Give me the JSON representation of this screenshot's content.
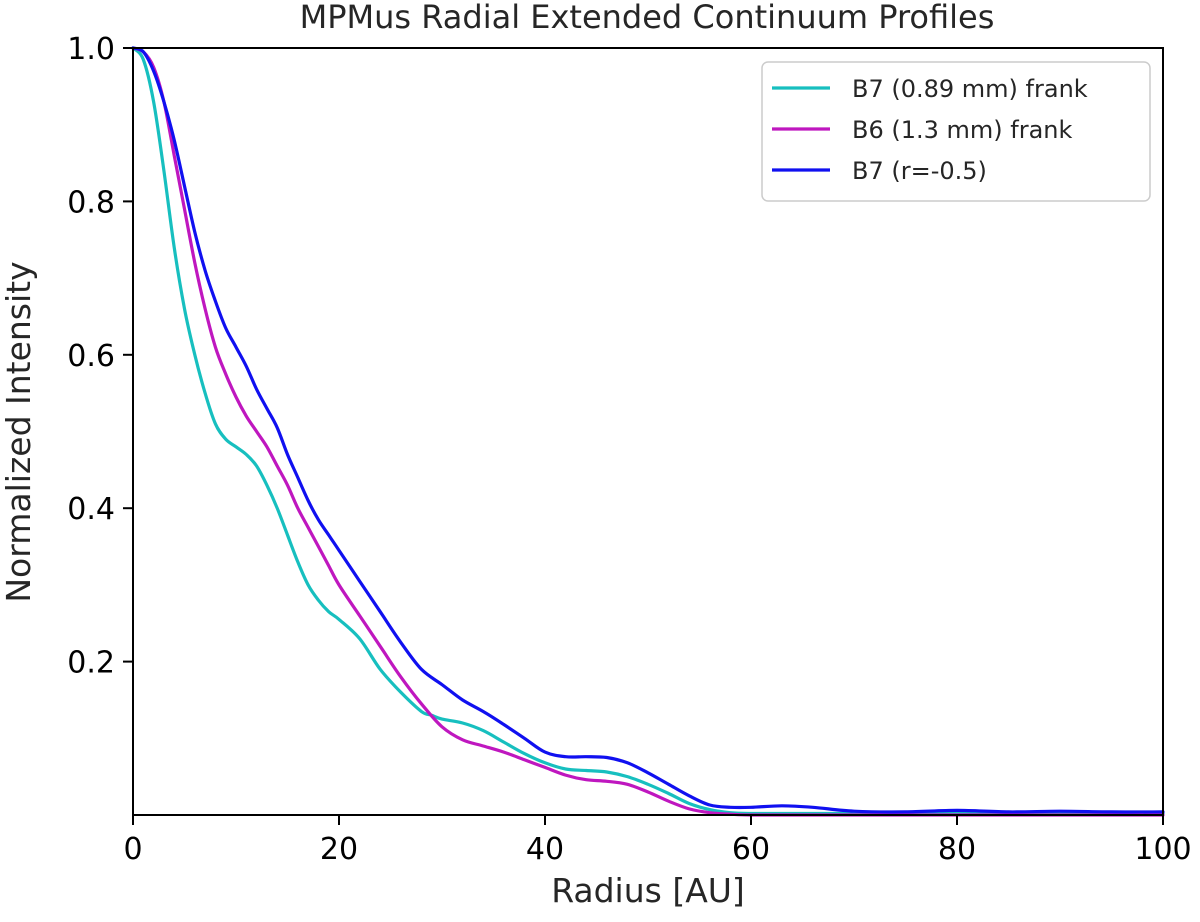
{
  "chart_data": {
    "type": "line",
    "title": "MPMus Radial Extended Continuum Profiles",
    "xlabel": "Radius [AU]",
    "ylabel": "Normalized Intensity",
    "xlim": [
      0,
      100
    ],
    "ylim": [
      0,
      1.0
    ],
    "xticks": [
      "0",
      "20",
      "40",
      "60",
      "80",
      "100"
    ],
    "yticks": [
      "0.2",
      "0.4",
      "0.6",
      "0.8",
      "1.0"
    ],
    "grid": false,
    "legend_position": "top-right",
    "series": [
      {
        "name": "B7 (0.89 mm) frank",
        "color": "#17bfbf",
        "x": [
          0,
          1,
          2,
          3,
          4,
          5,
          6,
          7,
          8,
          9,
          10,
          11,
          12,
          13,
          14,
          15,
          16,
          17,
          18,
          19,
          20,
          22,
          24,
          26,
          28,
          29,
          30,
          32,
          34,
          36,
          38,
          40,
          42,
          44,
          46,
          48,
          50,
          52,
          54,
          56,
          58,
          60,
          65,
          70,
          80,
          90,
          100
        ],
        "y": [
          1.0,
          0.985,
          0.93,
          0.84,
          0.74,
          0.66,
          0.6,
          0.55,
          0.51,
          0.49,
          0.48,
          0.47,
          0.455,
          0.43,
          0.4,
          0.365,
          0.33,
          0.3,
          0.28,
          0.265,
          0.255,
          0.23,
          0.19,
          0.16,
          0.135,
          0.13,
          0.125,
          0.12,
          0.11,
          0.095,
          0.08,
          0.068,
          0.06,
          0.058,
          0.056,
          0.05,
          0.04,
          0.028,
          0.015,
          0.007,
          0.003,
          0.002,
          0.002,
          0.002,
          0.002,
          0.002,
          0.002
        ]
      },
      {
        "name": "B6 (1.3 mm) frank",
        "color": "#bf17bf",
        "x": [
          0,
          1,
          2,
          3,
          4,
          5,
          6,
          7,
          8,
          9,
          10,
          11,
          12,
          13,
          14,
          15,
          16,
          17,
          18,
          19,
          20,
          22,
          24,
          26,
          28,
          30,
          32,
          34,
          36,
          38,
          40,
          42,
          44,
          46,
          48,
          50,
          52,
          54,
          56,
          58,
          60,
          65,
          70,
          80,
          90,
          100
        ],
        "y": [
          1.0,
          0.995,
          0.975,
          0.93,
          0.86,
          0.79,
          0.72,
          0.66,
          0.61,
          0.575,
          0.545,
          0.52,
          0.5,
          0.48,
          0.455,
          0.43,
          0.4,
          0.375,
          0.35,
          0.325,
          0.3,
          0.26,
          0.22,
          0.18,
          0.145,
          0.115,
          0.098,
          0.09,
          0.082,
          0.072,
          0.062,
          0.052,
          0.046,
          0.044,
          0.04,
          0.03,
          0.018,
          0.008,
          0.003,
          0.001,
          0.0,
          0.0,
          0.0,
          0.0,
          0.0,
          0.0
        ]
      },
      {
        "name": "B7 (r=-0.5)",
        "color": "#1010f0",
        "x": [
          0,
          1,
          2,
          3,
          4,
          5,
          6,
          7,
          8,
          9,
          10,
          11,
          12,
          13,
          14,
          15,
          16,
          17,
          18,
          19,
          20,
          22,
          24,
          26,
          28,
          30,
          32,
          34,
          36,
          38,
          40,
          42,
          44,
          46,
          48,
          50,
          52,
          54,
          56,
          58,
          60,
          63,
          66,
          70,
          75,
          80,
          85,
          90,
          95,
          100
        ],
        "y": [
          1.0,
          0.995,
          0.97,
          0.93,
          0.88,
          0.82,
          0.76,
          0.71,
          0.67,
          0.635,
          0.61,
          0.585,
          0.555,
          0.53,
          0.505,
          0.47,
          0.44,
          0.41,
          0.385,
          0.365,
          0.345,
          0.305,
          0.265,
          0.225,
          0.19,
          0.17,
          0.15,
          0.135,
          0.118,
          0.1,
          0.082,
          0.076,
          0.076,
          0.075,
          0.068,
          0.055,
          0.04,
          0.025,
          0.013,
          0.01,
          0.01,
          0.012,
          0.01,
          0.005,
          0.004,
          0.006,
          0.004,
          0.005,
          0.004,
          0.004
        ]
      }
    ]
  }
}
